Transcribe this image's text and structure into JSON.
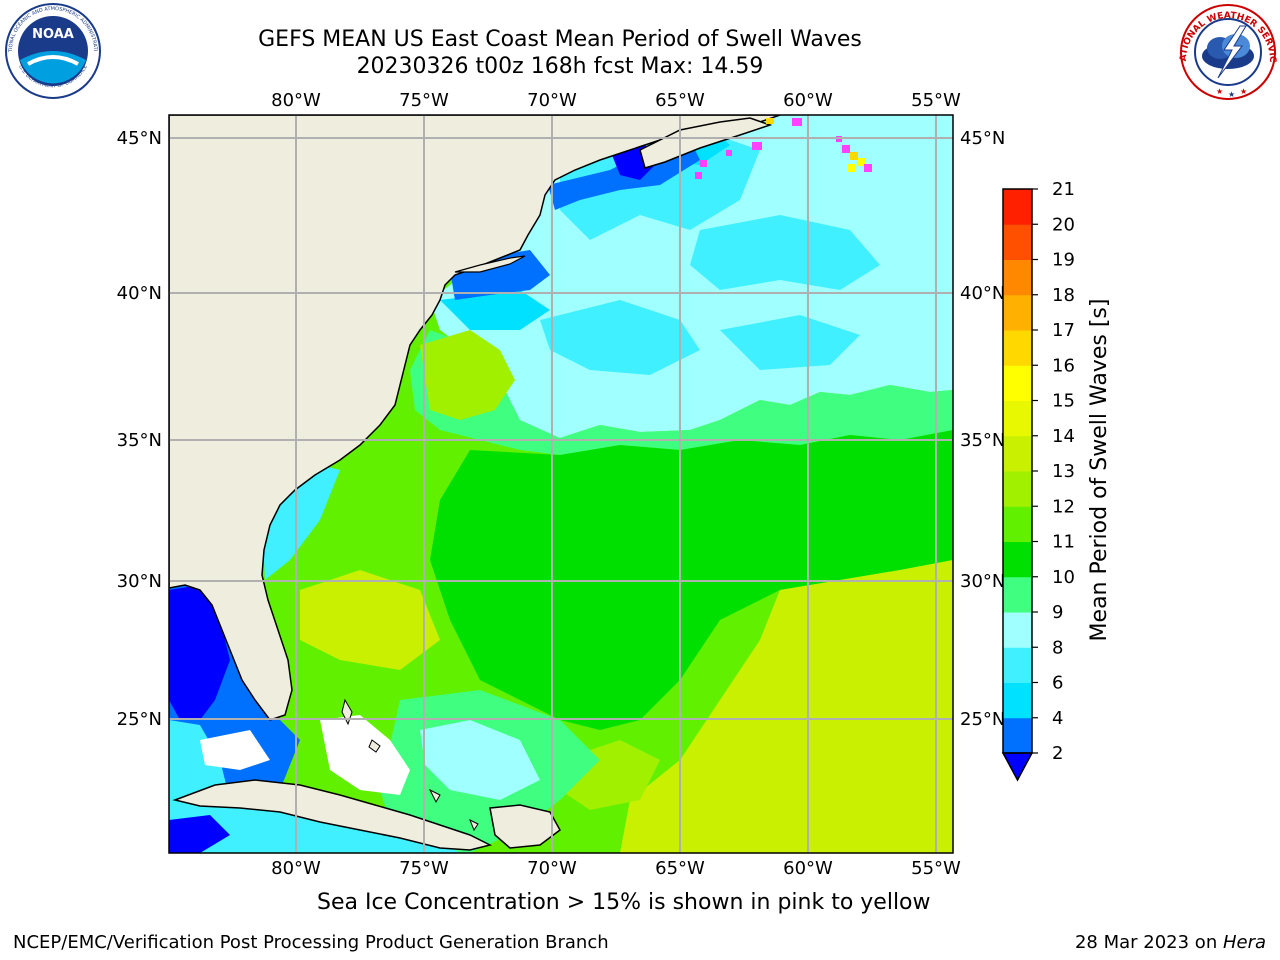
{
  "header": {
    "title_line1": "GEFS MEAN US East Coast Mean Period of Swell Waves",
    "title_line2": "20230326 t00z 168h fcst   Max: 14.59"
  },
  "logos": {
    "left_text": "NOAA",
    "left_ring_top": "NATIONAL OCEANIC AND ATMOSPHERIC ADMINISTRATION",
    "left_ring_bottom": "U.S. DEPARTMENT OF COMMERCE",
    "right_ring_top": "NATIONAL WEATHER SERVICE"
  },
  "map": {
    "lon_labels": [
      "80°W",
      "75°W",
      "70°W",
      "65°W",
      "60°W",
      "55°W"
    ],
    "lat_labels": [
      "45°N",
      "40°N",
      "35°N",
      "30°N",
      "25°N"
    ],
    "land_color": "#efedde",
    "grid_color": "#b0b0b0"
  },
  "colorbar": {
    "label": "Mean Period of Swell Waves [s]",
    "ticks": [
      "2",
      "4",
      "6",
      "8",
      "9",
      "10",
      "11",
      "12",
      "13",
      "14",
      "15",
      "16",
      "17",
      "18",
      "19",
      "20",
      "21"
    ],
    "colors": [
      "#0070ff",
      "#00e0ff",
      "#40f0ff",
      "#a0ffff",
      "#40ff80",
      "#00e000",
      "#60f000",
      "#a0f000",
      "#c8f000",
      "#e8f800",
      "#ffff00",
      "#ffd800",
      "#ffb000",
      "#ff8800",
      "#ff5000",
      "#ff2000"
    ],
    "under_color": "#0000ff"
  },
  "sea_ice_note": "Sea Ice Concentration > 15% is shown in pink to yellow",
  "footer": {
    "left": "NCEP/EMC/Verification Post Processing Product Generation Branch",
    "right_prefix": "28 Mar 2023 on ",
    "right_machine": "Hera"
  }
}
